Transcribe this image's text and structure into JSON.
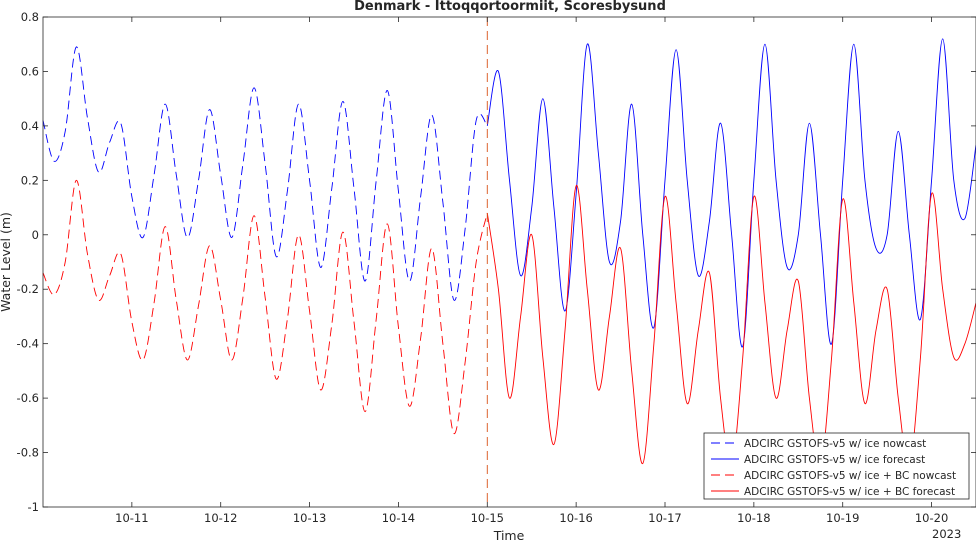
{
  "chart_data": {
    "type": "line",
    "title": "Denmark - Ittoqqortoormiit, Scoresbysund",
    "xlabel": "Time",
    "ylabel": "Water Level (m)",
    "year_label": "2023",
    "ylim": [
      -1,
      0.8
    ],
    "xlim": [
      "2023-10-10T00:00",
      "2023-10-20T12:00"
    ],
    "x_ticks": [
      "10-11",
      "10-12",
      "10-13",
      "10-14",
      "10-15",
      "10-16",
      "10-17",
      "10-18",
      "10-19",
      "10-20"
    ],
    "y_ticks": [
      "0.8",
      "0.6",
      "0.4",
      "0.2",
      "0",
      "-0.2",
      "-0.4",
      "-0.6",
      "-0.8",
      "-1"
    ],
    "forecast_start": "2023-10-15T00:00",
    "legend_position": "bottom-right",
    "grid": false,
    "series": [
      {
        "name": "ADCIRC GSTOFS-v5 w/ ice nowcast",
        "color": "#0000ff",
        "dash": true,
        "x": [
          "2023-10-10T00:00",
          "2023-10-10T03:00",
          "2023-10-10T06:00",
          "2023-10-10T09:00",
          "2023-10-10T12:00",
          "2023-10-10T15:00",
          "2023-10-10T18:00",
          "2023-10-10T21:00",
          "2023-10-11T00:00",
          "2023-10-11T03:00",
          "2023-10-11T06:00",
          "2023-10-11T09:00",
          "2023-10-11T12:00",
          "2023-10-11T15:00",
          "2023-10-11T18:00",
          "2023-10-11T21:00",
          "2023-10-12T00:00",
          "2023-10-12T03:00",
          "2023-10-12T06:00",
          "2023-10-12T09:00",
          "2023-10-12T12:00",
          "2023-10-12T15:00",
          "2023-10-12T18:00",
          "2023-10-12T21:00",
          "2023-10-13T00:00",
          "2023-10-13T03:00",
          "2023-10-13T06:00",
          "2023-10-13T09:00",
          "2023-10-13T12:00",
          "2023-10-13T15:00",
          "2023-10-13T18:00",
          "2023-10-13T21:00",
          "2023-10-14T00:00",
          "2023-10-14T03:00",
          "2023-10-14T06:00",
          "2023-10-14T09:00",
          "2023-10-14T12:00",
          "2023-10-14T15:00",
          "2023-10-14T18:00",
          "2023-10-14T21:00",
          "2023-10-15T00:00"
        ],
        "y": [
          0.42,
          0.27,
          0.38,
          0.69,
          0.43,
          0.23,
          0.34,
          0.41,
          0.14,
          -0.01,
          0.22,
          0.48,
          0.22,
          -0.01,
          0.2,
          0.46,
          0.22,
          -0.01,
          0.26,
          0.54,
          0.26,
          -0.08,
          0.16,
          0.48,
          0.2,
          -0.12,
          0.17,
          0.49,
          0.17,
          -0.17,
          0.2,
          0.53,
          0.16,
          -0.17,
          0.14,
          0.44,
          0.12,
          -0.24,
          0.02,
          0.42,
          0.4
        ]
      },
      {
        "name": "ADCIRC GSTOFS-v5 w/ ice forecast",
        "color": "#0000ff",
        "dash": false,
        "x": [
          "2023-10-15T00:00",
          "2023-10-15T03:00",
          "2023-10-15T06:00",
          "2023-10-15T09:00",
          "2023-10-15T12:00",
          "2023-10-15T15:00",
          "2023-10-15T18:00",
          "2023-10-15T21:00",
          "2023-10-16T00:00",
          "2023-10-16T03:00",
          "2023-10-16T06:00",
          "2023-10-16T09:00",
          "2023-10-16T12:00",
          "2023-10-16T15:00",
          "2023-10-16T18:00",
          "2023-10-16T21:00",
          "2023-10-17T00:00",
          "2023-10-17T03:00",
          "2023-10-17T06:00",
          "2023-10-17T09:00",
          "2023-10-17T12:00",
          "2023-10-17T15:00",
          "2023-10-17T18:00",
          "2023-10-17T21:00",
          "2023-10-18T00:00",
          "2023-10-18T03:00",
          "2023-10-18T06:00",
          "2023-10-18T09:00",
          "2023-10-18T12:00",
          "2023-10-18T15:00",
          "2023-10-18T18:00",
          "2023-10-18T21:00",
          "2023-10-19T00:00",
          "2023-10-19T03:00",
          "2023-10-19T06:00",
          "2023-10-19T09:00",
          "2023-10-19T12:00",
          "2023-10-19T15:00",
          "2023-10-19T18:00",
          "2023-10-19T21:00",
          "2023-10-20T00:00",
          "2023-10-20T03:00",
          "2023-10-20T06:00",
          "2023-10-20T09:00",
          "2023-10-20T12:00"
        ],
        "y": [
          0.4,
          0.6,
          0.2,
          -0.15,
          0.1,
          0.5,
          0.1,
          -0.28,
          0.15,
          0.7,
          0.3,
          -0.1,
          0.05,
          0.48,
          0.0,
          -0.34,
          0.2,
          0.68,
          0.2,
          -0.15,
          0.05,
          0.41,
          0.0,
          -0.41,
          0.2,
          0.7,
          0.2,
          -0.12,
          0.0,
          0.41,
          0.0,
          -0.4,
          0.2,
          0.7,
          0.2,
          -0.05,
          0.0,
          0.38,
          0.0,
          -0.31,
          0.2,
          0.72,
          0.2,
          0.06,
          0.33
        ]
      },
      {
        "name": "ADCIRC GSTOFS-v5 w/ ice + BC nowcast",
        "color": "#ff0000",
        "dash": true,
        "x": [
          "2023-10-10T00:00",
          "2023-10-10T03:00",
          "2023-10-10T06:00",
          "2023-10-10T09:00",
          "2023-10-10T12:00",
          "2023-10-10T15:00",
          "2023-10-10T18:00",
          "2023-10-10T21:00",
          "2023-10-11T00:00",
          "2023-10-11T03:00",
          "2023-10-11T06:00",
          "2023-10-11T09:00",
          "2023-10-11T12:00",
          "2023-10-11T15:00",
          "2023-10-11T18:00",
          "2023-10-11T21:00",
          "2023-10-12T00:00",
          "2023-10-12T03:00",
          "2023-10-12T06:00",
          "2023-10-12T09:00",
          "2023-10-12T12:00",
          "2023-10-12T15:00",
          "2023-10-12T18:00",
          "2023-10-12T21:00",
          "2023-10-13T00:00",
          "2023-10-13T03:00",
          "2023-10-13T06:00",
          "2023-10-13T09:00",
          "2023-10-13T12:00",
          "2023-10-13T15:00",
          "2023-10-13T18:00",
          "2023-10-13T21:00",
          "2023-10-14T00:00",
          "2023-10-14T03:00",
          "2023-10-14T06:00",
          "2023-10-14T09:00",
          "2023-10-14T12:00",
          "2023-10-14T15:00",
          "2023-10-14T18:00",
          "2023-10-14T21:00",
          "2023-10-15T00:00"
        ],
        "y": [
          -0.14,
          -0.22,
          -0.1,
          0.2,
          -0.07,
          -0.24,
          -0.15,
          -0.07,
          -0.32,
          -0.46,
          -0.25,
          0.03,
          -0.24,
          -0.46,
          -0.26,
          -0.04,
          -0.24,
          -0.46,
          -0.23,
          0.07,
          -0.23,
          -0.53,
          -0.31,
          0.0,
          -0.28,
          -0.57,
          -0.33,
          0.01,
          -0.32,
          -0.65,
          -0.31,
          0.04,
          -0.34,
          -0.63,
          -0.38,
          -0.05,
          -0.4,
          -0.73,
          -0.47,
          -0.1,
          0.08
        ]
      },
      {
        "name": "ADCIRC GSTOFS-v5 w/ ice + BC forecast",
        "color": "#ff0000",
        "dash": false,
        "x": [
          "2023-10-15T00:00",
          "2023-10-15T03:00",
          "2023-10-15T06:00",
          "2023-10-15T09:00",
          "2023-10-15T12:00",
          "2023-10-15T15:00",
          "2023-10-15T18:00",
          "2023-10-15T21:00",
          "2023-10-16T00:00",
          "2023-10-16T03:00",
          "2023-10-16T06:00",
          "2023-10-16T09:00",
          "2023-10-16T12:00",
          "2023-10-16T15:00",
          "2023-10-16T18:00",
          "2023-10-16T21:00",
          "2023-10-17T00:00",
          "2023-10-17T03:00",
          "2023-10-17T06:00",
          "2023-10-17T09:00",
          "2023-10-17T12:00",
          "2023-10-17T15:00",
          "2023-10-17T18:00",
          "2023-10-17T21:00",
          "2023-10-18T00:00",
          "2023-10-18T03:00",
          "2023-10-18T06:00",
          "2023-10-18T09:00",
          "2023-10-18T12:00",
          "2023-10-18T15:00",
          "2023-10-18T18:00",
          "2023-10-18T21:00",
          "2023-10-19T00:00",
          "2023-10-19T03:00",
          "2023-10-19T06:00",
          "2023-10-19T09:00",
          "2023-10-19T12:00",
          "2023-10-19T15:00",
          "2023-10-19T18:00",
          "2023-10-19T21:00",
          "2023-10-20T00:00",
          "2023-10-20T03:00",
          "2023-10-20T06:00",
          "2023-10-20T09:00",
          "2023-10-20T12:00"
        ],
        "y": [
          0.08,
          -0.2,
          -0.6,
          -0.3,
          0.0,
          -0.45,
          -0.77,
          -0.35,
          0.18,
          -0.2,
          -0.57,
          -0.3,
          -0.05,
          -0.5,
          -0.84,
          -0.4,
          0.14,
          -0.25,
          -0.62,
          -0.35,
          -0.14,
          -0.6,
          -0.85,
          -0.45,
          0.14,
          -0.25,
          -0.6,
          -0.35,
          -0.17,
          -0.6,
          -0.85,
          -0.45,
          0.13,
          -0.25,
          -0.62,
          -0.35,
          -0.2,
          -0.6,
          -0.85,
          -0.45,
          0.15,
          -0.2,
          -0.45,
          -0.4,
          -0.25
        ]
      }
    ]
  }
}
